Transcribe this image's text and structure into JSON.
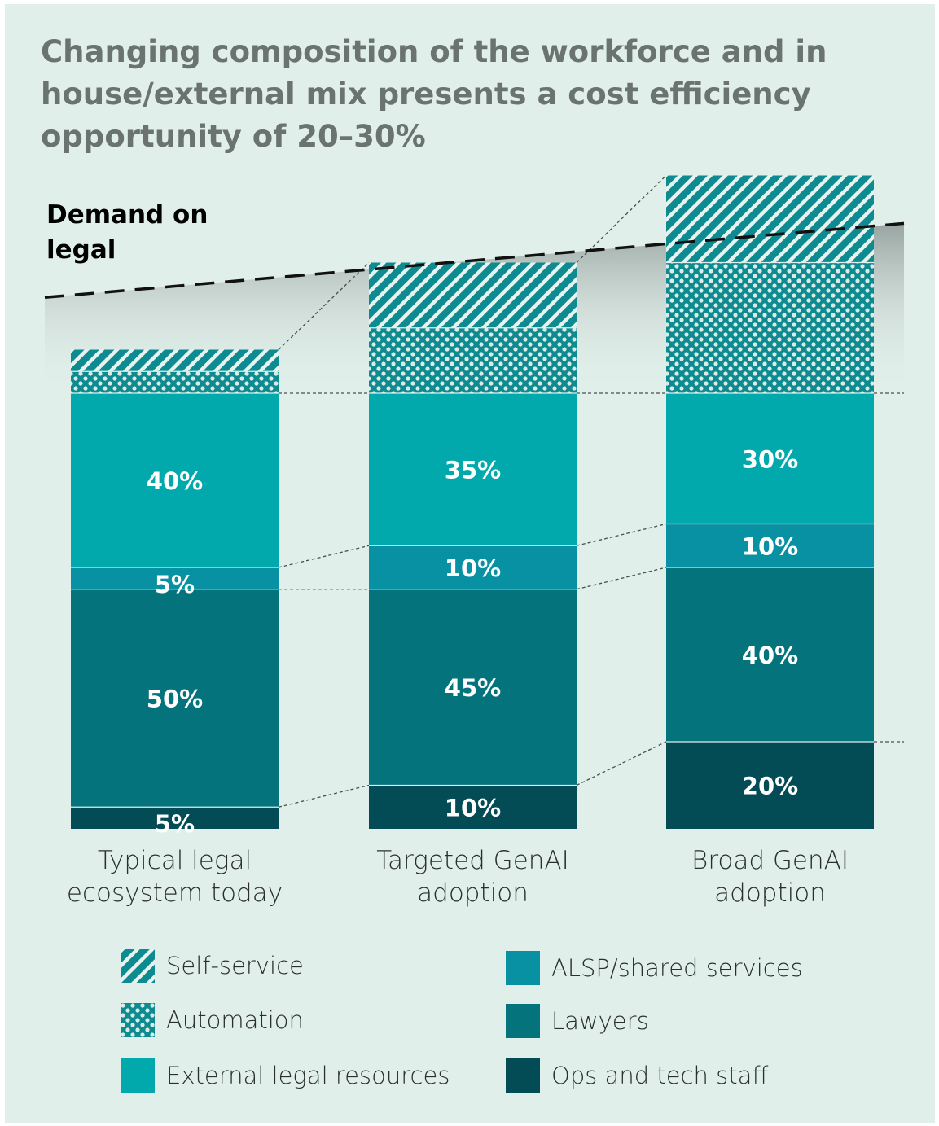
{
  "title": "Changing composition of the workforce and in house/external mix presents a cost efficiency opportunity of 20–30%",
  "demand_label": "Demand on legal",
  "chart_data": {
    "type": "bar",
    "stacked": true,
    "categories": [
      "Typical legal ecosystem today",
      "Targeted GenAI adoption",
      "Broad GenAI adoption"
    ],
    "category_lines": [
      [
        "Typical legal",
        "ecosystem today"
      ],
      [
        "Targeted GenAI",
        "adoption"
      ],
      [
        "Broad GenAI",
        "adoption"
      ]
    ],
    "series": [
      {
        "name": "Ops and tech staff",
        "values": [
          5,
          10,
          20
        ],
        "labels": [
          "5%",
          "10%",
          "20%"
        ],
        "color": "#034b55",
        "pattern": "solid"
      },
      {
        "name": "Lawyers",
        "values": [
          50,
          45,
          40
        ],
        "labels": [
          "50%",
          "45%",
          "40%"
        ],
        "color": "#04737c",
        "pattern": "solid"
      },
      {
        "name": "ALSP/shared services",
        "values": [
          5,
          10,
          10
        ],
        "labels": [
          "5%",
          "10%",
          "10%"
        ],
        "color": "#0891a3",
        "pattern": "solid"
      },
      {
        "name": "External legal resources",
        "values": [
          40,
          35,
          30
        ],
        "labels": [
          "40%",
          "35%",
          "30%"
        ],
        "color": "#01a9ad",
        "pattern": "solid"
      },
      {
        "name": "Automation",
        "values": [
          5,
          15,
          30
        ],
        "labels": [
          "",
          "",
          ""
        ],
        "color": "#0d8b90",
        "pattern": "dots"
      },
      {
        "name": "Self-service",
        "values": [
          5,
          15,
          20
        ],
        "labels": [
          "",
          "",
          ""
        ],
        "color": "#0d8b90",
        "pattern": "stripes"
      }
    ],
    "legend": [
      {
        "name": "Self-service",
        "pattern": "stripes"
      },
      {
        "name": "Automation",
        "pattern": "dots"
      },
      {
        "name": "External legal resources",
        "pattern": "solid",
        "color": "#01a9ad"
      },
      {
        "name": "ALSP/shared services",
        "pattern": "solid",
        "color": "#0891a3"
      },
      {
        "name": "Lawyers",
        "pattern": "solid",
        "color": "#04737c"
      },
      {
        "name": "Ops and tech staff",
        "pattern": "solid",
        "color": "#034b55"
      }
    ],
    "demand_line": {
      "label": "Demand on legal",
      "start": 122,
      "end": 139
    },
    "ylim": [
      0,
      150
    ]
  }
}
